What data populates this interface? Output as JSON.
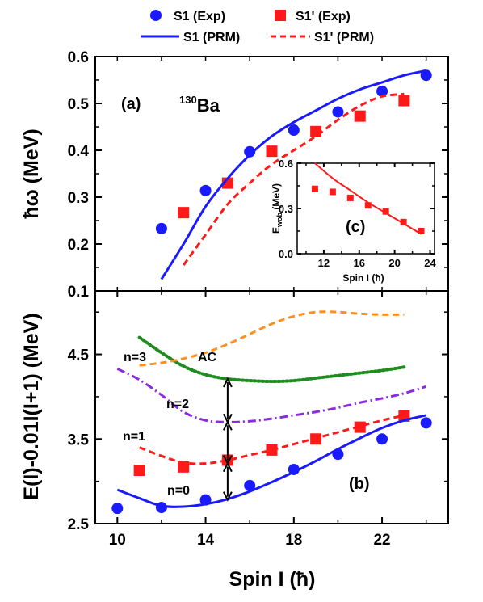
{
  "chart_data": [
    {
      "panel": "(a)",
      "type": "line",
      "nucleus_sup": "130",
      "nucleus": "Ba",
      "ylabel": "ħω (MeV)",
      "ylim": [
        0.1,
        0.6
      ],
      "yticks": [
        "0.1",
        "0.2",
        "0.3",
        "0.4",
        "0.5",
        "0.6"
      ],
      "xlim": [
        9,
        25
      ],
      "legend": [
        {
          "label": "S1 (Exp)",
          "marker": "circle",
          "color": "#1a1aff"
        },
        {
          "label": "S1' (Exp)",
          "marker": "square",
          "color": "#ff1a1a"
        },
        {
          "label": "S1 (PRM)",
          "style": "solid",
          "color": "#1a1aff"
        },
        {
          "label": "S1' (PRM)",
          "style": "dashed",
          "color": "#ff1a1a"
        }
      ],
      "series": [
        {
          "name": "S1 (Exp)",
          "marker": "circle",
          "color": "#1a1aff",
          "x": [
            12,
            14,
            16,
            18,
            20,
            22,
            24
          ],
          "y": [
            0.233,
            0.314,
            0.397,
            0.443,
            0.482,
            0.526,
            0.56
          ]
        },
        {
          "name": "S1' (Exp)",
          "marker": "square",
          "color": "#ff1a1a",
          "x": [
            13,
            15,
            17,
            19,
            21,
            23
          ],
          "y": [
            0.267,
            0.33,
            0.398,
            0.44,
            0.473,
            0.506
          ]
        },
        {
          "name": "S1 (PRM)",
          "style": "solid",
          "color": "#1a1aff",
          "x": [
            12,
            13,
            14,
            15,
            16,
            17,
            18,
            19,
            20,
            21,
            22,
            23,
            24
          ],
          "y": [
            0.125,
            0.2,
            0.28,
            0.34,
            0.39,
            0.43,
            0.46,
            0.485,
            0.51,
            0.53,
            0.545,
            0.56,
            0.57
          ]
        },
        {
          "name": "S1' (PRM)",
          "style": "dashed",
          "color": "#ff1a1a",
          "x": [
            13,
            14,
            15,
            16,
            17,
            18,
            19,
            20,
            21,
            22,
            23
          ],
          "y": [
            0.155,
            0.22,
            0.285,
            0.33,
            0.37,
            0.4,
            0.43,
            0.465,
            0.495,
            0.515,
            0.52
          ]
        }
      ]
    },
    {
      "panel": "(c)",
      "type": "line",
      "ylabel": "E",
      "ylabel_sub": "wob",
      "ylabel_unit": " (MeV)",
      "xlabel": "Spin I (ħ)",
      "xlim": [
        9,
        24.5
      ],
      "ylim": [
        0,
        0.6
      ],
      "xticks": [
        "12",
        "16",
        "20",
        "24"
      ],
      "yticks": [
        "0.0",
        "0.3",
        "0.6"
      ],
      "series": [
        {
          "name": "Exp",
          "marker": "square",
          "color": "#ff1a1a",
          "x": [
            11,
            13,
            15,
            17,
            19,
            21,
            23
          ],
          "y": [
            0.43,
            0.41,
            0.37,
            0.32,
            0.28,
            0.21,
            0.15
          ]
        },
        {
          "name": "PRM",
          "style": "solid",
          "color": "#ff1a1a",
          "x": [
            11,
            13,
            15,
            17,
            19,
            21,
            23
          ],
          "y": [
            0.6,
            0.5,
            0.42,
            0.34,
            0.27,
            0.2,
            0.13
          ]
        }
      ]
    },
    {
      "panel": "(b)",
      "type": "line",
      "ylabel": "E(I)-0.01I(I+1) (MeV)",
      "xlabel": "Spin I (ħ)",
      "xlim": [
        9,
        25
      ],
      "ylim": [
        2.5,
        5.25
      ],
      "xticks": [
        "10",
        "14",
        "18",
        "22"
      ],
      "yticks": [
        "2.5",
        "3.5",
        "4.5"
      ],
      "labels": {
        "n0": "n=0",
        "n1": "n=1",
        "n2": "n=2",
        "n3": "n=3",
        "ac": "AC"
      },
      "series": [
        {
          "name": "S1 (Exp)",
          "marker": "circle",
          "color": "#1a1aff",
          "x": [
            10,
            12,
            14,
            16,
            18,
            20,
            22,
            24
          ],
          "y": [
            2.68,
            2.69,
            2.78,
            2.95,
            3.14,
            3.32,
            3.5,
            3.69
          ]
        },
        {
          "name": "S1' (Exp)",
          "marker": "square",
          "color": "#ff1a1a",
          "x": [
            11,
            13,
            15,
            17,
            19,
            21,
            23
          ],
          "y": [
            3.13,
            3.17,
            3.25,
            3.37,
            3.5,
            3.64,
            3.77
          ]
        },
        {
          "name": "n=0",
          "style": "solid",
          "color": "#1a1aff",
          "x": [
            10,
            11,
            12,
            13,
            14,
            15,
            16,
            17,
            18,
            19,
            20,
            21,
            22,
            23,
            24
          ],
          "y": [
            2.9,
            2.8,
            2.71,
            2.7,
            2.73,
            2.79,
            2.88,
            2.99,
            3.11,
            3.24,
            3.38,
            3.51,
            3.63,
            3.72,
            3.78
          ]
        },
        {
          "name": "n=1",
          "style": "dashed",
          "color": "#ff1a1a",
          "x": [
            11,
            12,
            13,
            14,
            15,
            16,
            17,
            18,
            19,
            20,
            21,
            22,
            23
          ],
          "y": [
            3.4,
            3.3,
            3.22,
            3.21,
            3.25,
            3.31,
            3.37,
            3.44,
            3.51,
            3.58,
            3.65,
            3.72,
            3.78
          ]
        },
        {
          "name": "n=2",
          "style": "dashdot",
          "color": "#8a2be2",
          "x": [
            10,
            11,
            12,
            13,
            14,
            15,
            16,
            17,
            18,
            19,
            20,
            21,
            22,
            23,
            24
          ],
          "y": [
            4.33,
            4.2,
            4.02,
            3.82,
            3.72,
            3.7,
            3.71,
            3.74,
            3.78,
            3.82,
            3.87,
            3.93,
            3.98,
            4.04,
            4.12
          ]
        },
        {
          "name": "n=3",
          "style": "dotted",
          "color": "#1e8c1e",
          "x": [
            11,
            12,
            13,
            14,
            15,
            16,
            17,
            18,
            19,
            20,
            21,
            22,
            23
          ],
          "y": [
            4.7,
            4.52,
            4.36,
            4.26,
            4.21,
            4.19,
            4.18,
            4.19,
            4.22,
            4.25,
            4.28,
            4.31,
            4.35
          ]
        },
        {
          "name": "AC",
          "style": "dashed",
          "color": "#ff9020",
          "x": [
            11,
            12,
            13,
            14,
            15,
            16,
            17,
            18,
            19,
            20,
            21,
            22,
            23
          ],
          "y": [
            4.37,
            4.4,
            4.45,
            4.52,
            4.62,
            4.74,
            4.86,
            4.95,
            5.0,
            5.0,
            4.98,
            4.97,
            4.97
          ]
        }
      ],
      "arrows": {
        "x": 15,
        "from": [
          2.78,
          3.21,
          3.7
        ],
        "to": [
          3.21,
          3.7,
          4.21
        ]
      }
    }
  ],
  "shared_xlabel": "Spin I (ħ)",
  "colors": {
    "blue": "#1a1aff",
    "red": "#ff1a1a",
    "purple": "#8a2be2",
    "green": "#1e8c1e",
    "orange": "#ff9020"
  }
}
